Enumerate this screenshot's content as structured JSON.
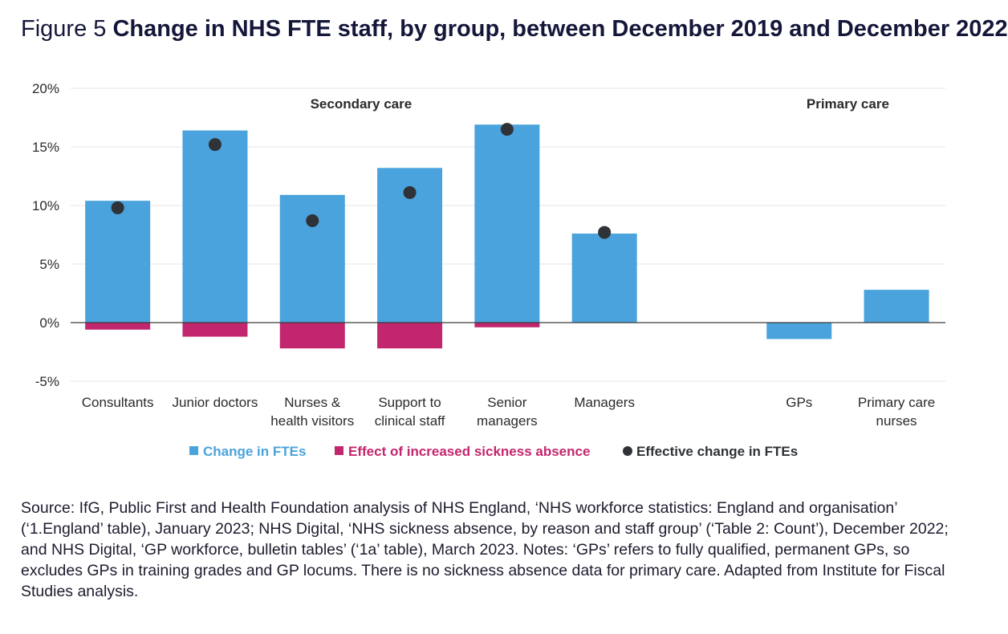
{
  "title": {
    "prefix": "Figure 5",
    "main": "Change in NHS FTE staff, by group, between December 2019 and December 2022"
  },
  "colors": {
    "change": "#4aa3dc",
    "sickness": "#c2266e",
    "effective": "#2f3236",
    "grid": "#e6e6e6",
    "axis_text": "#2b2b2b"
  },
  "chart_data": {
    "type": "bar",
    "categories": [
      [
        "Consultants"
      ],
      [
        "Junior doctors"
      ],
      [
        "Nurses &",
        "health visitors"
      ],
      [
        "Support to",
        "clinical staff"
      ],
      [
        "Senior",
        "managers"
      ],
      [
        "Managers"
      ],
      [
        ""
      ],
      [
        "GPs"
      ],
      [
        "Primary care",
        "nurses"
      ]
    ],
    "series": [
      {
        "name": "Change in FTEs",
        "kind": "bar",
        "values": [
          10.4,
          16.4,
          10.9,
          13.2,
          16.9,
          7.6,
          null,
          -1.4,
          2.8
        ]
      },
      {
        "name": "Effect of increased sickness absence",
        "kind": "bar",
        "values": [
          -0.6,
          -1.2,
          -2.2,
          -2.2,
          -0.4,
          null,
          null,
          null,
          null
        ]
      },
      {
        "name": "Effective change in FTEs",
        "kind": "point",
        "values": [
          9.8,
          15.2,
          8.7,
          11.1,
          16.5,
          7.7,
          null,
          null,
          null
        ]
      }
    ],
    "ylim": [
      -5,
      20
    ],
    "yticks": [
      -5,
      0,
      5,
      10,
      15,
      20
    ],
    "ytick_labels": [
      "-5%",
      "0%",
      "5%",
      "10%",
      "15%",
      "20%"
    ],
    "group_labels": [
      {
        "text": "Secondary care",
        "categories": [
          0,
          5
        ]
      },
      {
        "text": "Primary care",
        "categories": [
          7,
          8
        ]
      }
    ],
    "grid": true,
    "legend_position": "bottom-center"
  },
  "source": "Source: IfG, Public First and Health Foundation analysis of NHS England, ‘NHS workforce statistics: England and organisation’ (‘1.England’ table), January 2023; NHS Digital, ‘NHS sickness absence, by reason and staff group’ (‘Table 2: Count’), December 2022; and NHS Digital, ‘GP workforce, bulletin tables’ (‘1a’ table), March 2023. Notes: ‘GPs’ refers to fully qualified, permanent GPs, so excludes GPs in training grades and GP locums. There is no sickness absence data for primary care. Adapted from Institute for Fiscal Studies analysis."
}
